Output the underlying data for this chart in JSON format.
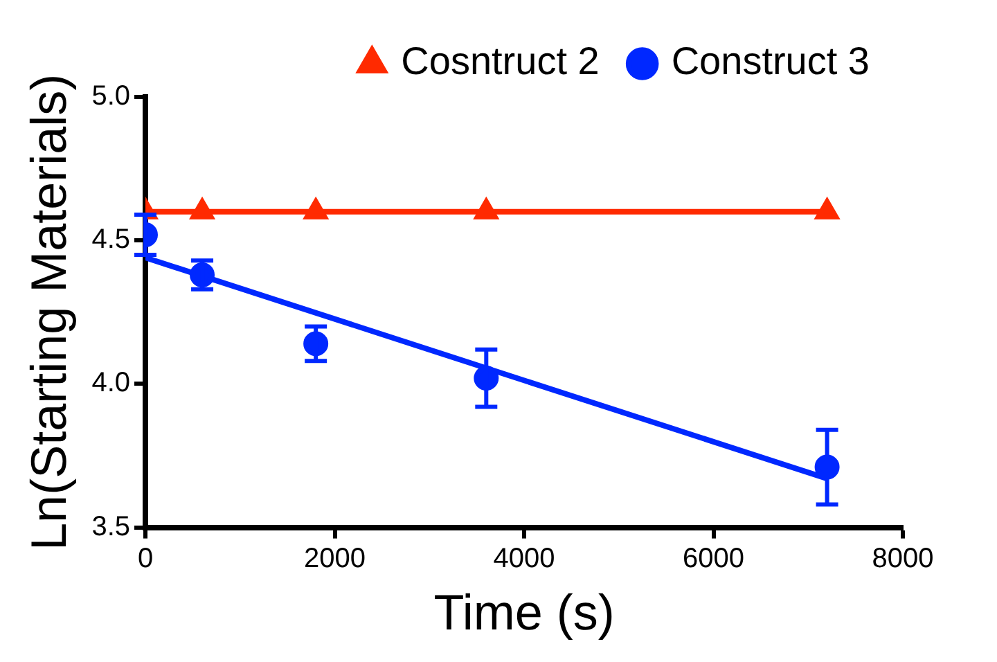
{
  "chart_data": {
    "type": "line",
    "xlabel": "Time (s)",
    "ylabel": "Ln(Starting Materials)",
    "xlim": [
      0,
      8000
    ],
    "xticks": [
      0,
      2000,
      4000,
      6000,
      8000
    ],
    "ylim": [
      3.5,
      5.0
    ],
    "yticks": [
      {
        "value": 3.5,
        "label": "3.5"
      },
      {
        "value": 4.0,
        "label": "4.0"
      },
      {
        "value": 4.5,
        "label": "4.5"
      },
      {
        "value": 5.0,
        "label": "5.0"
      }
    ],
    "grid": false,
    "legend": "top right",
    "series": [
      {
        "name": "Cosntruct 2",
        "type": "line",
        "color": "#ff2a00",
        "marker": "triangle",
        "x": [
          0,
          600,
          1800,
          3600,
          7200
        ],
        "values": [
          4.6,
          4.6,
          4.6,
          4.6,
          4.6
        ]
      },
      {
        "name": "Construct 3",
        "type": "scatter",
        "color": "#0028ff",
        "marker": "circle",
        "x": [
          0,
          600,
          1800,
          3600,
          7200
        ],
        "values": [
          4.52,
          4.38,
          4.14,
          4.02,
          3.71
        ],
        "errors": [
          0.07,
          0.05,
          0.06,
          0.1,
          0.13
        ]
      },
      {
        "type": "line",
        "color": "#0028ff",
        "marker": "none",
        "x": [
          0,
          7200
        ],
        "values": [
          4.44,
          3.67
        ]
      }
    ]
  }
}
